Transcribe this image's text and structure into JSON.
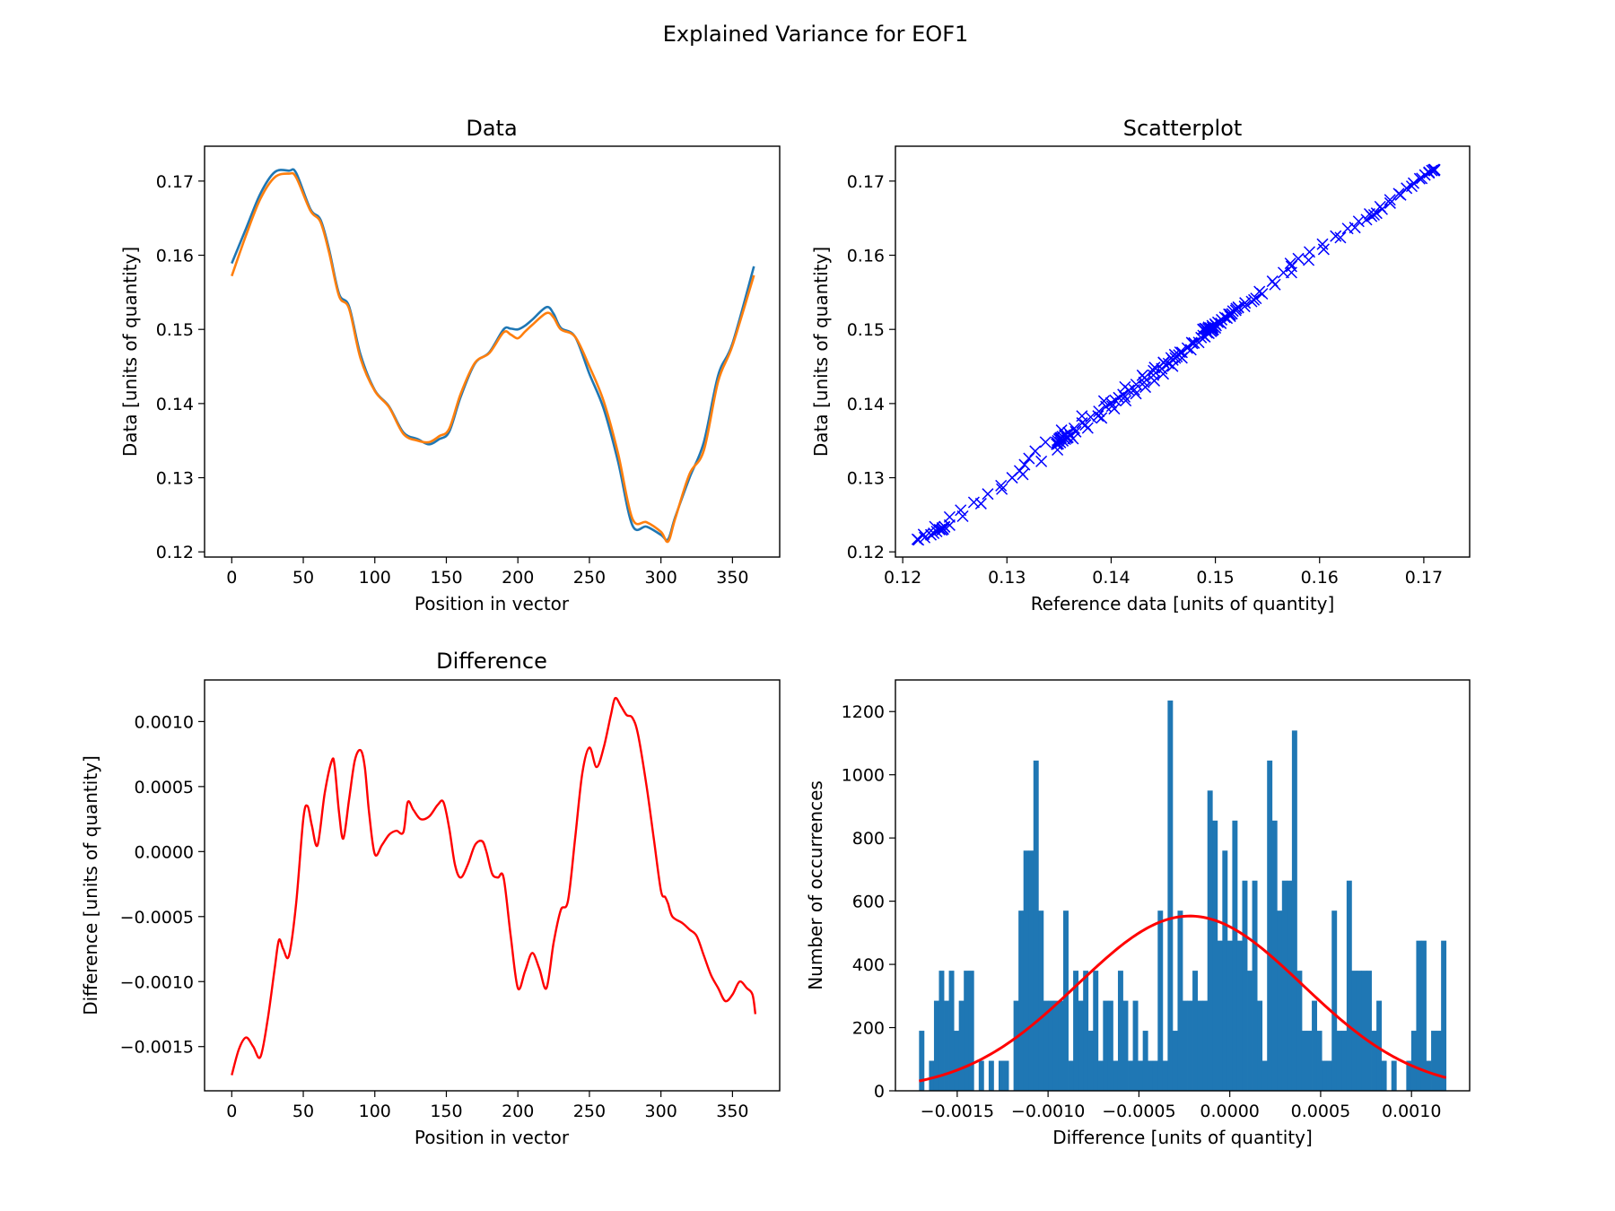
{
  "figure": {
    "suptitle": "Explained Variance for EOF1"
  },
  "chart_data": [
    {
      "type": "line",
      "title": "Data",
      "xlabel": "Position in vector",
      "ylabel": "Data [units of quantity]",
      "xlim": [
        -19,
        383
      ],
      "ylim": [
        0.1193,
        0.1747
      ],
      "xticks": [
        0,
        50,
        100,
        150,
        200,
        250,
        300,
        350
      ],
      "xtick_labels": [
        "0",
        "50",
        "100",
        "150",
        "200",
        "250",
        "300",
        "350"
      ],
      "yticks": [
        0.12,
        0.13,
        0.14,
        0.15,
        0.16,
        0.17
      ],
      "ytick_labels": [
        "0.12",
        "0.13",
        "0.14",
        "0.15",
        "0.16",
        "0.17"
      ],
      "series": [
        {
          "color": "#1f77b4",
          "x": [
            0,
            10,
            20,
            30,
            40,
            45,
            55,
            62,
            68,
            75,
            82,
            90,
            100,
            110,
            120,
            130,
            138,
            145,
            152,
            160,
            170,
            180,
            190,
            195,
            200,
            205,
            210,
            220,
            225,
            230,
            240,
            250,
            260,
            270,
            280,
            290,
            300,
            305,
            310,
            320,
            330,
            340,
            350,
            365
          ],
          "y": [
            0.1589,
            0.1636,
            0.1683,
            0.1712,
            0.1714,
            0.1711,
            0.1662,
            0.1648,
            0.1608,
            0.1548,
            0.1531,
            0.1466,
            0.1418,
            0.1396,
            0.1361,
            0.1352,
            0.1345,
            0.1352,
            0.1362,
            0.1409,
            0.1454,
            0.1469,
            0.15,
            0.1501,
            0.15,
            0.1505,
            0.1513,
            0.153,
            0.1521,
            0.1502,
            0.149,
            0.144,
            0.1393,
            0.1322,
            0.1236,
            0.1234,
            0.1223,
            0.1217,
            0.1247,
            0.13,
            0.1348,
            0.1438,
            0.1481,
            0.1585
          ]
        },
        {
          "color": "#ff7f0e",
          "x": [
            0,
            10,
            20,
            30,
            40,
            45,
            55,
            62,
            68,
            75,
            82,
            90,
            100,
            110,
            120,
            130,
            138,
            145,
            152,
            160,
            170,
            180,
            190,
            195,
            200,
            205,
            210,
            220,
            225,
            230,
            240,
            250,
            260,
            270,
            280,
            290,
            300,
            305,
            310,
            320,
            330,
            340,
            350,
            365
          ],
          "y": [
            0.1572,
            0.1627,
            0.1676,
            0.1705,
            0.171,
            0.1705,
            0.166,
            0.1645,
            0.1604,
            0.1545,
            0.1528,
            0.1461,
            0.1417,
            0.1395,
            0.1359,
            0.135,
            0.1348,
            0.1356,
            0.1366,
            0.1413,
            0.1455,
            0.1468,
            0.1496,
            0.1493,
            0.1488,
            0.1497,
            0.1506,
            0.1522,
            0.1516,
            0.15,
            0.149,
            0.145,
            0.1403,
            0.1333,
            0.1245,
            0.124,
            0.1227,
            0.1214,
            0.1245,
            0.1305,
            0.1337,
            0.143,
            0.1478,
            0.1573
          ]
        }
      ]
    },
    {
      "type": "scatter",
      "title": "Scatterplot",
      "xlabel": "Reference data [units of quantity]",
      "ylabel": "Data [units of quantity]",
      "marker": "x",
      "color": "#0000ff",
      "xlim": [
        0.1193,
        0.1744
      ],
      "ylim": [
        0.1193,
        0.1747
      ],
      "xticks": [
        0.12,
        0.13,
        0.14,
        0.15,
        0.16,
        0.17
      ],
      "xtick_labels": [
        "0.12",
        "0.13",
        "0.14",
        "0.15",
        "0.16",
        "0.17"
      ],
      "yticks": [
        0.12,
        0.13,
        0.14,
        0.15,
        0.16,
        0.17
      ],
      "ytick_labels": [
        "0.12",
        "0.13",
        "0.14",
        "0.15",
        "0.16",
        "0.17"
      ],
      "pairing": "x from Data series 2 (reference), y from Data series 1"
    },
    {
      "type": "line",
      "title": "Difference",
      "xlabel": "Position in vector",
      "ylabel": "Difference [units of quantity]",
      "color": "#ff0000",
      "xlim": [
        -19,
        383
      ],
      "ylim": [
        -0.00184,
        0.00132
      ],
      "xticks": [
        0,
        50,
        100,
        150,
        200,
        250,
        300,
        350
      ],
      "xtick_labels": [
        "0",
        "50",
        "100",
        "150",
        "200",
        "250",
        "300",
        "350"
      ],
      "yticks": [
        -0.0015,
        -0.001,
        -0.0005,
        0.0,
        0.0005,
        0.001
      ],
      "ytick_labels": [
        "−0.0015",
        "−0.0010",
        "−0.0005",
        "0.0000",
        "0.0005",
        "0.0010"
      ],
      "x": [
        0,
        5,
        10,
        15,
        20,
        25,
        30,
        33,
        36,
        40,
        45,
        50,
        53,
        56,
        60,
        65,
        70,
        72,
        75,
        78,
        82,
        86,
        90,
        93,
        96,
        100,
        105,
        110,
        115,
        120,
        123,
        127,
        132,
        138,
        144,
        148,
        152,
        156,
        160,
        165,
        170,
        175,
        178,
        182,
        186,
        190,
        195,
        200,
        205,
        210,
        215,
        220,
        225,
        230,
        235,
        240,
        245,
        250,
        255,
        260,
        265,
        268,
        272,
        276,
        280,
        284,
        290,
        295,
        300,
        303,
        305,
        308,
        315,
        320,
        325,
        330,
        335,
        340,
        345,
        350,
        355,
        360,
        364,
        366
      ],
      "y": [
        -0.00172,
        -0.00152,
        -0.00143,
        -0.0015,
        -0.00158,
        -0.0013,
        -0.0009,
        -0.00068,
        -0.00075,
        -0.0008,
        -0.0004,
        0.00025,
        0.00035,
        0.0002,
        5e-05,
        0.00045,
        0.0007,
        0.00065,
        0.0003,
        0.0001,
        0.0004,
        0.0007,
        0.00078,
        0.00065,
        0.0003,
        -2e-05,
        5e-05,
        0.00013,
        0.00016,
        0.00015,
        0.00038,
        0.00032,
        0.00025,
        0.00027,
        0.00036,
        0.00038,
        0.00018,
        -0.0001,
        -0.0002,
        -0.0001,
        5e-05,
        8e-05,
        0.0,
        -0.00017,
        -0.0002,
        -0.0002,
        -0.00065,
        -0.00105,
        -0.00092,
        -0.00078,
        -0.0009,
        -0.00105,
        -0.0007,
        -0.00045,
        -0.00038,
        0.0001,
        0.0006,
        0.0008,
        0.00065,
        0.0008,
        0.00105,
        0.00118,
        0.00112,
        0.00105,
        0.00103,
        0.0009,
        0.0005,
        0.0001,
        -0.0003,
        -0.00035,
        -0.0004,
        -0.0005,
        -0.00055,
        -0.0006,
        -0.00065,
        -0.0008,
        -0.00095,
        -0.00105,
        -0.00115,
        -0.0011,
        -0.001,
        -0.00105,
        -0.0011,
        -0.00125
      ]
    },
    {
      "type": "bar",
      "subtype": "histogram_with_fit",
      "title": "",
      "xlabel": "Difference [units of quantity]",
      "ylabel": "Number of occurrences",
      "bar_color": "#1f77b4",
      "fit_color": "#ff0000",
      "xlim": [
        -0.00184,
        0.00132
      ],
      "ylim": [
        0,
        1300
      ],
      "xticks": [
        -0.0015,
        -0.001,
        -0.0005,
        0.0,
        0.0005,
        0.001
      ],
      "xtick_labels": [
        "−0.0015",
        "−0.0010",
        "−0.0005",
        "0.0000",
        "0.0005",
        "0.0010"
      ],
      "yticks": [
        0,
        200,
        400,
        600,
        800,
        1000,
        1200
      ],
      "ytick_labels": [
        "0",
        "200",
        "400",
        "600",
        "800",
        "1000",
        "1200"
      ],
      "bin_start": -0.00171,
      "bin_end": 0.00119,
      "counts": [
        190,
        0,
        95,
        285,
        380,
        285,
        380,
        190,
        285,
        380,
        380,
        0,
        95,
        0,
        95,
        0,
        95,
        95,
        0,
        285,
        570,
        760,
        760,
        1045,
        570,
        285,
        285,
        285,
        285,
        570,
        95,
        380,
        285,
        380,
        190,
        380,
        95,
        285,
        285,
        95,
        380,
        285,
        95,
        285,
        95,
        190,
        95,
        95,
        570,
        95,
        1235,
        190,
        570,
        285,
        285,
        380,
        285,
        285,
        950,
        855,
        475,
        760,
        475,
        855,
        475,
        665,
        380,
        665,
        285,
        95,
        1045,
        855,
        570,
        665,
        665,
        1140,
        380,
        190,
        190,
        285,
        190,
        95,
        95,
        570,
        190,
        190,
        665,
        380,
        380,
        380,
        380,
        190,
        285,
        95,
        0,
        95,
        0,
        0,
        95,
        190,
        475,
        475,
        95,
        190,
        190,
        475
      ],
      "fit": {
        "kind": "normal",
        "mean": -0.00022,
        "std": 0.00062,
        "peak": 553
      }
    }
  ]
}
